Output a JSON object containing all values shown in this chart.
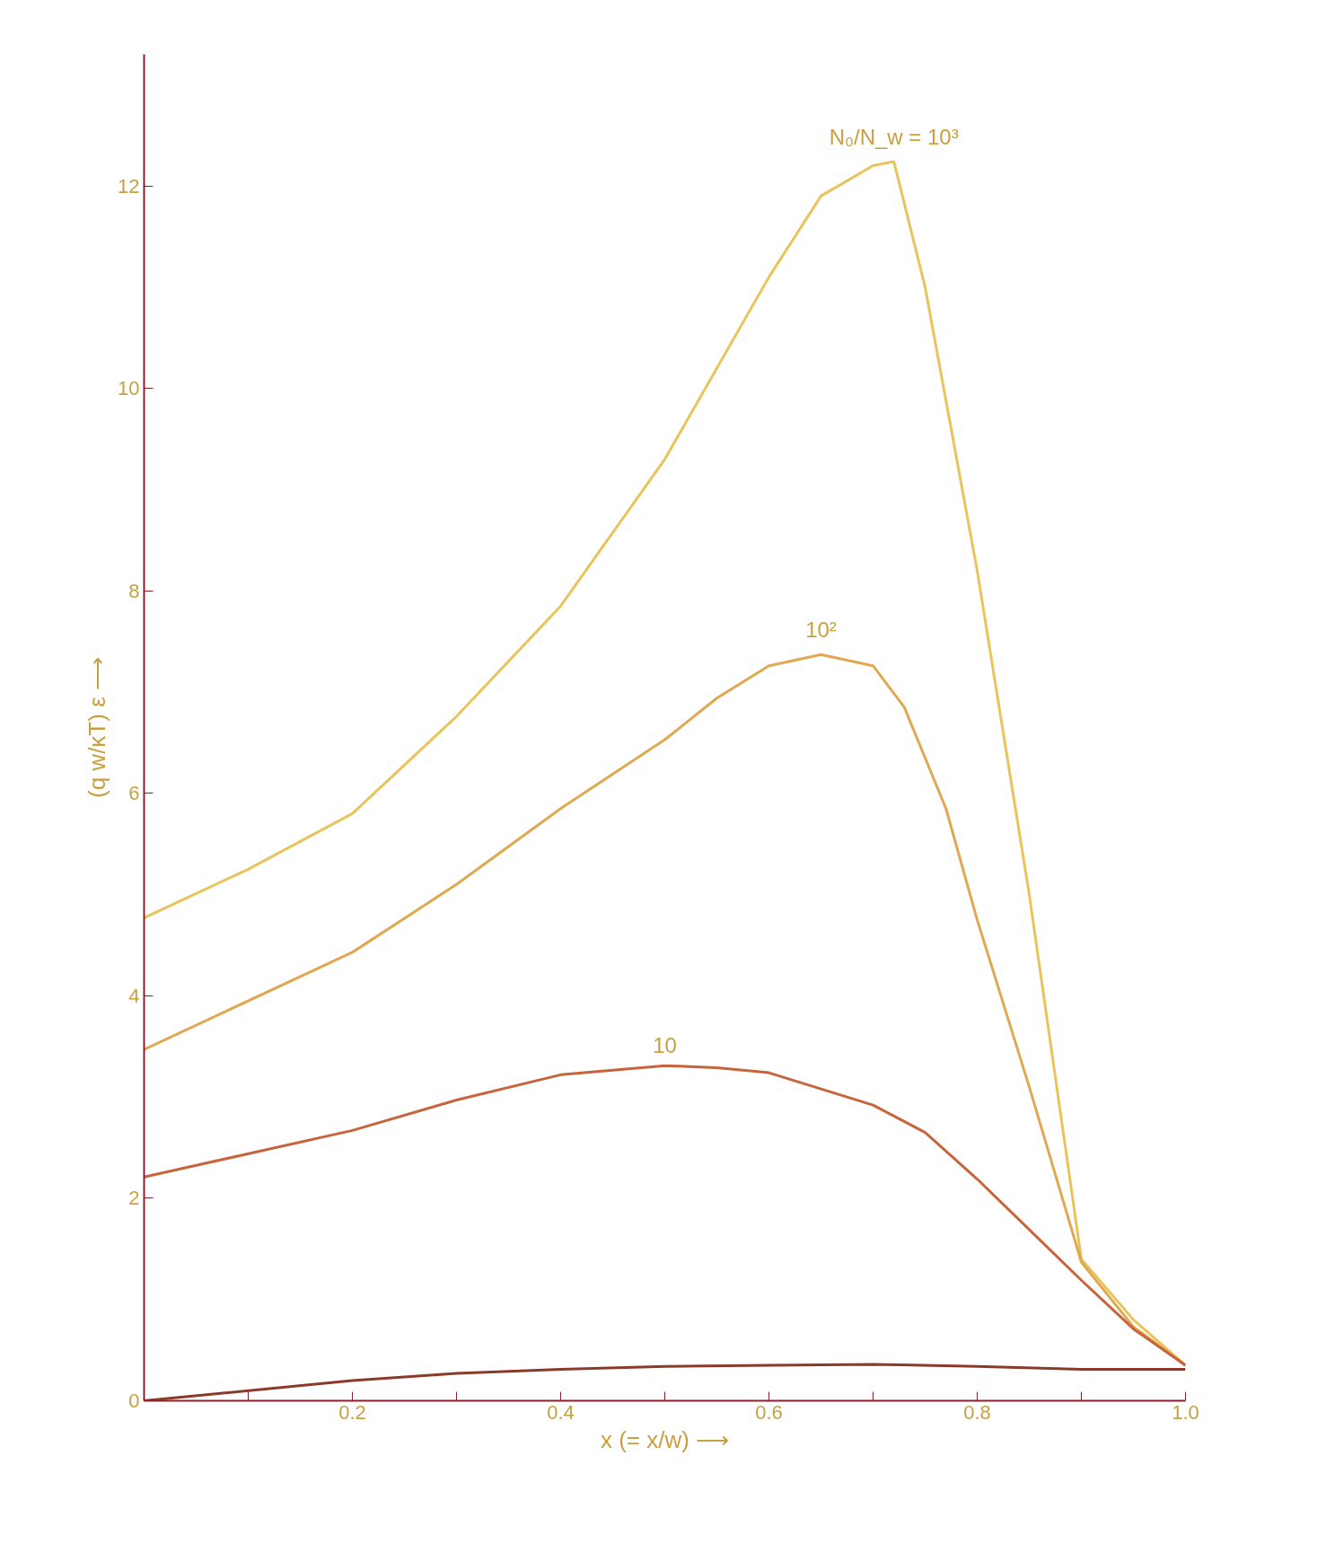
{
  "chart_data": {
    "type": "line",
    "xlabel": "x (= x/w) ⟶",
    "ylabel": "(q w/κT) ε ⟶",
    "xlim": [
      0,
      1.0
    ],
    "ylim": [
      0,
      13.3
    ],
    "xticks": [
      {
        "value": 0,
        "label": null
      },
      {
        "value": 0.1,
        "label": null
      },
      {
        "value": 0.2,
        "label": "0.2"
      },
      {
        "value": 0.3,
        "label": null
      },
      {
        "value": 0.4,
        "label": "0.4"
      },
      {
        "value": 0.5,
        "label": null
      },
      {
        "value": 0.6,
        "label": "0.6"
      },
      {
        "value": 0.7,
        "label": null
      },
      {
        "value": 0.8,
        "label": "0.8"
      },
      {
        "value": 0.9,
        "label": null
      },
      {
        "value": 1.0,
        "label": "1.0"
      }
    ],
    "yticks": [
      0,
      2,
      4,
      6,
      8,
      10,
      12
    ],
    "grid": false,
    "legend": false,
    "marker": "none",
    "line_style": "solid",
    "series": [
      {
        "name": "N₀/N_w = 10³",
        "color": "#e8c45a",
        "x": [
          0,
          0.1,
          0.2,
          0.3,
          0.4,
          0.5,
          0.6,
          0.65,
          0.7,
          0.72,
          0.75,
          0.8,
          0.85,
          0.9,
          0.95,
          1.0
        ],
        "values": [
          4.77,
          5.25,
          5.8,
          6.76,
          7.85,
          9.3,
          11.1,
          11.9,
          12.2,
          12.24,
          11.0,
          8.2,
          5.0,
          1.4,
          0.8,
          0.35
        ]
      },
      {
        "name": "10²",
        "color": "#e0a850",
        "x": [
          0,
          0.2,
          0.3,
          0.4,
          0.5,
          0.55,
          0.6,
          0.65,
          0.7,
          0.73,
          0.77,
          0.8,
          0.85,
          0.9,
          0.95,
          1.0
        ],
        "values": [
          3.47,
          4.43,
          5.1,
          5.85,
          6.53,
          6.94,
          7.26,
          7.37,
          7.26,
          6.85,
          5.85,
          4.75,
          3.1,
          1.37,
          0.73,
          0.35
        ]
      },
      {
        "name": "10",
        "color": "#c8643c",
        "x": [
          0,
          0.2,
          0.3,
          0.4,
          0.5,
          0.55,
          0.6,
          0.7,
          0.75,
          0.8,
          0.85,
          0.9,
          0.95,
          1.0
        ],
        "values": [
          2.21,
          2.67,
          2.97,
          3.22,
          3.31,
          3.29,
          3.24,
          2.92,
          2.65,
          2.19,
          1.69,
          1.19,
          0.71,
          0.35
        ]
      },
      {
        "color": "#8b3a2a",
        "x": [
          0,
          0.2,
          0.3,
          0.4,
          0.5,
          0.6,
          0.7,
          0.8,
          0.9,
          1.0
        ],
        "values": [
          0,
          0.2,
          0.27,
          0.31,
          0.34,
          0.35,
          0.36,
          0.34,
          0.31,
          0.31
        ]
      }
    ]
  }
}
